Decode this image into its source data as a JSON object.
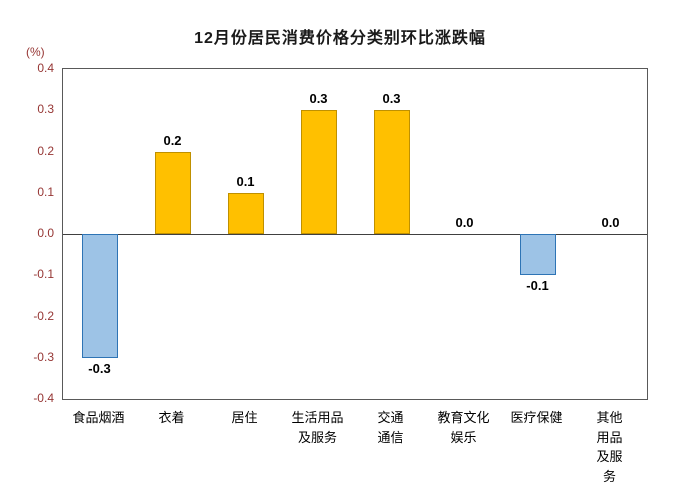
{
  "chart_data": {
    "type": "bar",
    "title": "12月份居民消费价格分类别环比涨跌幅",
    "ylabel": "(%)",
    "categories": [
      "食品烟酒",
      "衣着",
      "居住",
      "生活用品\n及服务",
      "交通\n通信",
      "教育文化\n娱乐",
      "医疗保健",
      "其他用品\n及服务"
    ],
    "values": [
      -0.3,
      0.2,
      0.1,
      0.3,
      0.3,
      0.0,
      -0.1,
      0.0
    ],
    "value_labels": [
      "-0.3",
      "0.2",
      "0.1",
      "0.3",
      "0.3",
      "0.0",
      "-0.1",
      "0.0"
    ],
    "ylim": [
      -0.4,
      0.4
    ],
    "ytick_labels": [
      "0.4",
      "0.3",
      "0.2",
      "0.1",
      "0.0",
      "-0.1",
      "-0.2",
      "-0.3",
      "-0.4"
    ],
    "grid": false,
    "legend_position": "none",
    "colors": {
      "positive_bar": "#FFC000",
      "positive_bar_border": "#BF9000",
      "negative_bar": "#9DC3E6",
      "negative_bar_border": "#2E74B5",
      "axis_text": "#963634",
      "title_text": "#1a1a1a",
      "value_label_text": "#000000",
      "category_text": "#000000",
      "plot_border": "#595959",
      "zero_line": "#404040"
    }
  }
}
